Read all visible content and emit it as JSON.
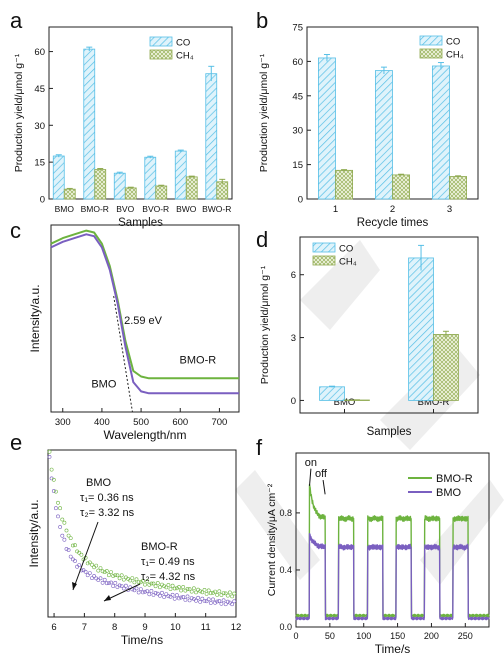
{
  "chart_data": [
    {
      "panel": "a",
      "type": "bar",
      "xlabel": "Samples",
      "ylabel": "Production yield/μmol g⁻¹",
      "ylim": [
        0,
        70
      ],
      "yticks": [
        "0",
        "15",
        "30",
        "45",
        "60"
      ],
      "categories": [
        "BMO",
        "BMO-R",
        "BVO",
        "BVO-R",
        "BWO",
        "BWO-R"
      ],
      "legend": [
        "CO",
        "CH₄"
      ],
      "legend_position": "top-right",
      "series": [
        {
          "name": "CO",
          "values": [
            17.5,
            61,
            10.5,
            17,
            19.5,
            51
          ],
          "errors": [
            0.5,
            0.8,
            0.4,
            0.4,
            0.4,
            3
          ]
        },
        {
          "name": "CH₄",
          "values": [
            4,
            12,
            4.5,
            5.3,
            9,
            7
          ],
          "errors": [
            0.3,
            0.4,
            0.3,
            0.3,
            0.3,
            1
          ]
        }
      ]
    },
    {
      "panel": "b",
      "type": "bar",
      "xlabel": "Recycle times",
      "ylabel": "Production yield/μmol g⁻¹",
      "ylim": [
        0,
        75
      ],
      "yticks": [
        "0",
        "15",
        "30",
        "45",
        "60",
        "75"
      ],
      "categories": [
        "1",
        "2",
        "3"
      ],
      "legend": [
        "CO",
        "CH₄"
      ],
      "legend_position": "top-right",
      "series": [
        {
          "name": "CO",
          "values": [
            61.5,
            56,
            58
          ],
          "errors": [
            1.5,
            1.5,
            1.5
          ]
        },
        {
          "name": "CH₄",
          "values": [
            12.5,
            10.5,
            9.8
          ],
          "errors": [
            0.3,
            0.3,
            0.3
          ]
        }
      ]
    },
    {
      "panel": "c",
      "type": "line",
      "xlabel": "Wavelength/nm",
      "ylabel": "Intensity/a.u.",
      "xlim": [
        270,
        750
      ],
      "xticks": [
        "300",
        "400",
        "500",
        "600",
        "700"
      ],
      "annotations": [
        "2.59 eV",
        "BMO",
        "BMO-R"
      ],
      "series": [
        {
          "name": "BMO-R",
          "x": [
            270,
            300,
            330,
            360,
            380,
            400,
            420,
            440,
            460,
            480,
            500,
            520,
            560,
            600,
            700,
            750
          ],
          "y": [
            0.9,
            0.93,
            0.95,
            0.97,
            0.96,
            0.9,
            0.78,
            0.6,
            0.38,
            0.22,
            0.19,
            0.18,
            0.18,
            0.18,
            0.18,
            0.18
          ]
        },
        {
          "name": "BMO",
          "x": [
            270,
            300,
            330,
            360,
            380,
            400,
            420,
            440,
            460,
            480,
            500,
            520,
            560,
            600,
            700,
            750
          ],
          "y": [
            0.88,
            0.91,
            0.93,
            0.95,
            0.94,
            0.88,
            0.76,
            0.58,
            0.35,
            0.16,
            0.11,
            0.1,
            0.1,
            0.1,
            0.1,
            0.1
          ]
        }
      ]
    },
    {
      "panel": "d",
      "type": "bar",
      "xlabel": "Samples",
      "ylabel": "Production yield/μmol g⁻¹",
      "ylim": [
        -0.6,
        7.8
      ],
      "yticks": [
        "0",
        "3",
        "6"
      ],
      "categories": [
        "BMO",
        "BMO-R"
      ],
      "legend": [
        "CO",
        "CH₄"
      ],
      "legend_position": "top-left",
      "series": [
        {
          "name": "CO",
          "values": [
            0.65,
            6.8
          ],
          "errors": [
            0.03,
            0.6
          ]
        },
        {
          "name": "CH₄",
          "values": [
            0.02,
            3.15
          ],
          "errors": [
            0.01,
            0.15
          ]
        }
      ]
    },
    {
      "panel": "e",
      "type": "scatter",
      "xlabel": "Time/ns",
      "ylabel": "Intensity/a.u.",
      "xlim": [
        5.8,
        12
      ],
      "xticks": [
        "6",
        "7",
        "8",
        "9",
        "10",
        "11",
        "12"
      ],
      "annotations": {
        "bmo": "BMO",
        "bmo_t1": "τ₁= 0.36 ns",
        "bmo_t2": "τ₂= 3.32 ns",
        "bmor": "BMO-R",
        "bmor_t1": "τ₁= 0.49 ns",
        "bmor_t2": "τ₂= 4.32 ns"
      },
      "series": [
        {
          "name": "BMO",
          "tau": [
            0.36,
            3.32
          ]
        },
        {
          "name": "BMO-R",
          "tau": [
            0.49,
            4.32
          ]
        }
      ]
    },
    {
      "panel": "f",
      "type": "line",
      "xlabel": "Time/s",
      "ylabel": "Current density/μA cm⁻²",
      "xlim": [
        0,
        285
      ],
      "ylim": [
        0,
        1.22
      ],
      "xticks": [
        "0",
        "50",
        "100",
        "150",
        "200",
        "250"
      ],
      "yticks": [
        "0.0",
        "0.4",
        "0.8"
      ],
      "annotations": [
        "on",
        "off"
      ],
      "legend": [
        "BMO-R",
        "BMO"
      ],
      "legend_position": "top-right",
      "series": [
        {
          "name": "BMO-R",
          "on_level": 0.76,
          "first_peak": 1.0
        },
        {
          "name": "BMO",
          "on_level": 0.56,
          "first_peak": 0.65
        }
      ]
    }
  ],
  "panel_labels": {
    "a": "a",
    "b": "b",
    "c": "c",
    "d": "d",
    "e": "e",
    "f": "f"
  },
  "colors": {
    "co": "#56bfe6",
    "co_fill": "#d9f1fb",
    "ch4": "#8ea94f",
    "ch4_fill": "#eef3dc",
    "bmor": "#6db33f",
    "bmo": "#7a5fc0",
    "watermark": "#e8e8e8"
  }
}
